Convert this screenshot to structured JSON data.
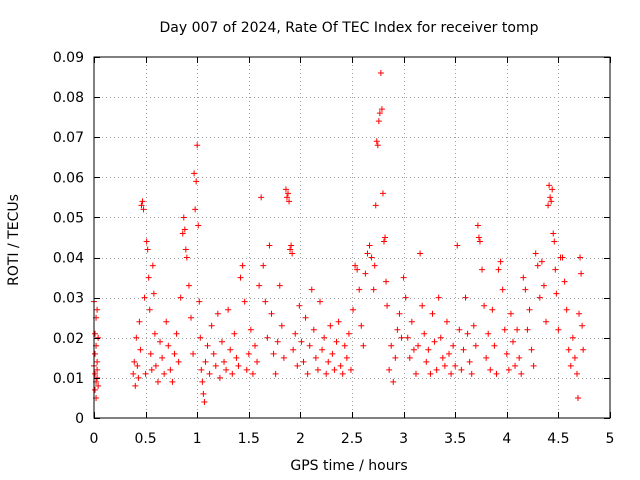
{
  "chart_data": {
    "type": "scatter",
    "title": "Day 007 of 2024, Rate Of TEC Index for receiver tomp",
    "xlabel": "GPS time / hours",
    "ylabel": "ROTI / TECUs",
    "xlim": [
      0,
      5
    ],
    "ylim": [
      0,
      0.09
    ],
    "xticks": [
      0,
      0.5,
      1,
      1.5,
      2,
      2.5,
      3,
      3.5,
      4,
      4.5,
      5
    ],
    "xtick_labels": [
      "0",
      "0.5",
      "1",
      "1.5",
      "2",
      "2.5",
      "3",
      "3.5",
      "4",
      "4.5",
      "5"
    ],
    "yticks": [
      0,
      0.01,
      0.02,
      0.03,
      0.04,
      0.05,
      0.06,
      0.07,
      0.08,
      0.09
    ],
    "ytick_labels": [
      "0",
      "0.01",
      "0.02",
      "0.03",
      "0.04",
      "0.05",
      "0.06",
      "0.07",
      "0.08",
      "0.09"
    ],
    "grid": true,
    "marker": "+",
    "color": "#ff0000",
    "series": [
      {
        "name": "ROTI",
        "points": [
          [
            0.0,
            0.029
          ],
          [
            0.0,
            0.013
          ],
          [
            0.01,
            0.011
          ],
          [
            0.01,
            0.007
          ],
          [
            0.01,
            0.021
          ],
          [
            0.02,
            0.025
          ],
          [
            0.02,
            0.009
          ],
          [
            0.02,
            0.005
          ],
          [
            0.03,
            0.014
          ],
          [
            0.03,
            0.012
          ],
          [
            0.03,
            0.027
          ],
          [
            0.04,
            0.02
          ],
          [
            0.04,
            0.008
          ],
          [
            0.01,
            0.016
          ],
          [
            0.02,
            0.018
          ],
          [
            0.03,
            0.01
          ],
          [
            0.38,
            0.011
          ],
          [
            0.39,
            0.014
          ],
          [
            0.4,
            0.008
          ],
          [
            0.41,
            0.02
          ],
          [
            0.42,
            0.013
          ],
          [
            0.43,
            0.01
          ],
          [
            0.44,
            0.024
          ],
          [
            0.45,
            0.017
          ],
          [
            0.46,
            0.053
          ],
          [
            0.47,
            0.054
          ],
          [
            0.48,
            0.052
          ],
          [
            0.49,
            0.03
          ],
          [
            0.5,
            0.011
          ],
          [
            0.51,
            0.044
          ],
          [
            0.52,
            0.042
          ],
          [
            0.53,
            0.035
          ],
          [
            0.54,
            0.027
          ],
          [
            0.55,
            0.016
          ],
          [
            0.56,
            0.012
          ],
          [
            0.57,
            0.038
          ],
          [
            0.58,
            0.031
          ],
          [
            0.59,
            0.021
          ],
          [
            0.6,
            0.013
          ],
          [
            0.62,
            0.009
          ],
          [
            0.64,
            0.019
          ],
          [
            0.66,
            0.015
          ],
          [
            0.68,
            0.011
          ],
          [
            0.7,
            0.024
          ],
          [
            0.72,
            0.018
          ],
          [
            0.74,
            0.012
          ],
          [
            0.76,
            0.009
          ],
          [
            0.78,
            0.016
          ],
          [
            0.8,
            0.021
          ],
          [
            0.82,
            0.014
          ],
          [
            0.84,
            0.03
          ],
          [
            0.86,
            0.046
          ],
          [
            0.87,
            0.05
          ],
          [
            0.88,
            0.047
          ],
          [
            0.89,
            0.042
          ],
          [
            0.9,
            0.04
          ],
          [
            0.92,
            0.033
          ],
          [
            0.94,
            0.025
          ],
          [
            0.96,
            0.016
          ],
          [
            0.97,
            0.061
          ],
          [
            0.98,
            0.052
          ],
          [
            0.99,
            0.059
          ],
          [
            1.0,
            0.068
          ],
          [
            1.01,
            0.048
          ],
          [
            1.02,
            0.029
          ],
          [
            1.03,
            0.02
          ],
          [
            1.04,
            0.012
          ],
          [
            1.05,
            0.009
          ],
          [
            1.06,
            0.006
          ],
          [
            1.07,
            0.004
          ],
          [
            1.08,
            0.014
          ],
          [
            1.1,
            0.018
          ],
          [
            1.12,
            0.011
          ],
          [
            1.14,
            0.023
          ],
          [
            1.16,
            0.016
          ],
          [
            1.18,
            0.013
          ],
          [
            1.2,
            0.026
          ],
          [
            1.22,
            0.01
          ],
          [
            1.24,
            0.019
          ],
          [
            1.26,
            0.014
          ],
          [
            1.28,
            0.012
          ],
          [
            1.3,
            0.027
          ],
          [
            1.32,
            0.017
          ],
          [
            1.34,
            0.011
          ],
          [
            1.36,
            0.021
          ],
          [
            1.38,
            0.015
          ],
          [
            1.4,
            0.013
          ],
          [
            1.42,
            0.035
          ],
          [
            1.44,
            0.038
          ],
          [
            1.46,
            0.029
          ],
          [
            1.48,
            0.012
          ],
          [
            1.5,
            0.016
          ],
          [
            1.52,
            0.022
          ],
          [
            1.54,
            0.011
          ],
          [
            1.56,
            0.018
          ],
          [
            1.58,
            0.014
          ],
          [
            1.6,
            0.033
          ],
          [
            1.62,
            0.055
          ],
          [
            1.64,
            0.038
          ],
          [
            1.66,
            0.029
          ],
          [
            1.68,
            0.02
          ],
          [
            1.7,
            0.043
          ],
          [
            1.72,
            0.026
          ],
          [
            1.74,
            0.016
          ],
          [
            1.76,
            0.011
          ],
          [
            1.78,
            0.019
          ],
          [
            1.8,
            0.033
          ],
          [
            1.82,
            0.023
          ],
          [
            1.84,
            0.015
          ],
          [
            1.86,
            0.057
          ],
          [
            1.87,
            0.055
          ],
          [
            1.88,
            0.056
          ],
          [
            1.89,
            0.054
          ],
          [
            1.9,
            0.042
          ],
          [
            1.91,
            0.043
          ],
          [
            1.92,
            0.041
          ],
          [
            1.93,
            0.017
          ],
          [
            1.95,
            0.021
          ],
          [
            1.97,
            0.013
          ],
          [
            1.99,
            0.028
          ],
          [
            2.01,
            0.019
          ],
          [
            2.03,
            0.014
          ],
          [
            2.05,
            0.025
          ],
          [
            2.07,
            0.011
          ],
          [
            2.09,
            0.018
          ],
          [
            2.11,
            0.032
          ],
          [
            2.13,
            0.022
          ],
          [
            2.15,
            0.015
          ],
          [
            2.17,
            0.012
          ],
          [
            2.19,
            0.029
          ],
          [
            2.21,
            0.017
          ],
          [
            2.23,
            0.02
          ],
          [
            2.25,
            0.011
          ],
          [
            2.27,
            0.014
          ],
          [
            2.29,
            0.023
          ],
          [
            2.31,
            0.016
          ],
          [
            2.33,
            0.012
          ],
          [
            2.35,
            0.019
          ],
          [
            2.37,
            0.024
          ],
          [
            2.39,
            0.013
          ],
          [
            2.41,
            0.011
          ],
          [
            2.43,
            0.018
          ],
          [
            2.45,
            0.015
          ],
          [
            2.47,
            0.021
          ],
          [
            2.49,
            0.012
          ],
          [
            2.51,
            0.027
          ],
          [
            2.53,
            0.038
          ],
          [
            2.55,
            0.037
          ],
          [
            2.57,
            0.032
          ],
          [
            2.59,
            0.023
          ],
          [
            2.61,
            0.018
          ],
          [
            2.63,
            0.036
          ],
          [
            2.65,
            0.041
          ],
          [
            2.67,
            0.043
          ],
          [
            2.69,
            0.04
          ],
          [
            2.71,
            0.032
          ],
          [
            2.72,
            0.038
          ],
          [
            2.73,
            0.053
          ],
          [
            2.74,
            0.069
          ],
          [
            2.75,
            0.068
          ],
          [
            2.76,
            0.074
          ],
          [
            2.77,
            0.076
          ],
          [
            2.78,
            0.086
          ],
          [
            2.79,
            0.077
          ],
          [
            2.8,
            0.056
          ],
          [
            2.81,
            0.044
          ],
          [
            2.82,
            0.045
          ],
          [
            2.83,
            0.034
          ],
          [
            2.84,
            0.028
          ],
          [
            2.86,
            0.012
          ],
          [
            2.88,
            0.018
          ],
          [
            2.9,
            0.009
          ],
          [
            2.92,
            0.015
          ],
          [
            2.94,
            0.022
          ],
          [
            2.96,
            0.026
          ],
          [
            2.98,
            0.02
          ],
          [
            3.0,
            0.035
          ],
          [
            3.02,
            0.03
          ],
          [
            3.04,
            0.02
          ],
          [
            3.06,
            0.015
          ],
          [
            3.08,
            0.024
          ],
          [
            3.1,
            0.017
          ],
          [
            3.12,
            0.011
          ],
          [
            3.14,
            0.018
          ],
          [
            3.16,
            0.041
          ],
          [
            3.18,
            0.028
          ],
          [
            3.2,
            0.021
          ],
          [
            3.22,
            0.014
          ],
          [
            3.24,
            0.017
          ],
          [
            3.26,
            0.011
          ],
          [
            3.28,
            0.026
          ],
          [
            3.3,
            0.019
          ],
          [
            3.32,
            0.012
          ],
          [
            3.34,
            0.03
          ],
          [
            3.36,
            0.02
          ],
          [
            3.38,
            0.015
          ],
          [
            3.4,
            0.013
          ],
          [
            3.42,
            0.024
          ],
          [
            3.44,
            0.016
          ],
          [
            3.46,
            0.011
          ],
          [
            3.48,
            0.018
          ],
          [
            3.5,
            0.013
          ],
          [
            3.52,
            0.043
          ],
          [
            3.54,
            0.022
          ],
          [
            3.56,
            0.012
          ],
          [
            3.58,
            0.017
          ],
          [
            3.6,
            0.03
          ],
          [
            3.62,
            0.021
          ],
          [
            3.64,
            0.014
          ],
          [
            3.66,
            0.011
          ],
          [
            3.68,
            0.023
          ],
          [
            3.7,
            0.018
          ],
          [
            3.72,
            0.048
          ],
          [
            3.73,
            0.045
          ],
          [
            3.74,
            0.044
          ],
          [
            3.76,
            0.037
          ],
          [
            3.78,
            0.028
          ],
          [
            3.8,
            0.015
          ],
          [
            3.82,
            0.021
          ],
          [
            3.84,
            0.012
          ],
          [
            3.86,
            0.027
          ],
          [
            3.88,
            0.018
          ],
          [
            3.9,
            0.011
          ],
          [
            3.92,
            0.037
          ],
          [
            3.94,
            0.039
          ],
          [
            3.96,
            0.032
          ],
          [
            3.98,
            0.022
          ],
          [
            4.0,
            0.016
          ],
          [
            4.02,
            0.012
          ],
          [
            4.04,
            0.026
          ],
          [
            4.06,
            0.019
          ],
          [
            4.08,
            0.013
          ],
          [
            4.1,
            0.022
          ],
          [
            4.12,
            0.015
          ],
          [
            4.14,
            0.011
          ],
          [
            4.16,
            0.035
          ],
          [
            4.18,
            0.032
          ],
          [
            4.2,
            0.022
          ],
          [
            4.22,
            0.027
          ],
          [
            4.24,
            0.017
          ],
          [
            4.26,
            0.013
          ],
          [
            4.28,
            0.041
          ],
          [
            4.3,
            0.038
          ],
          [
            4.32,
            0.03
          ],
          [
            4.34,
            0.039
          ],
          [
            4.36,
            0.033
          ],
          [
            4.38,
            0.024
          ],
          [
            4.4,
            0.053
          ],
          [
            4.41,
            0.058
          ],
          [
            4.42,
            0.055
          ],
          [
            4.43,
            0.054
          ],
          [
            4.44,
            0.057
          ],
          [
            4.45,
            0.046
          ],
          [
            4.46,
            0.044
          ],
          [
            4.47,
            0.037
          ],
          [
            4.48,
            0.031
          ],
          [
            4.5,
            0.022
          ],
          [
            4.52,
            0.04
          ],
          [
            4.54,
            0.04
          ],
          [
            4.56,
            0.034
          ],
          [
            4.58,
            0.027
          ],
          [
            4.6,
            0.017
          ],
          [
            4.62,
            0.013
          ],
          [
            4.64,
            0.02
          ],
          [
            4.66,
            0.015
          ],
          [
            4.68,
            0.011
          ],
          [
            4.69,
            0.005
          ],
          [
            4.7,
            0.026
          ],
          [
            4.71,
            0.04
          ],
          [
            4.72,
            0.036
          ],
          [
            4.73,
            0.023
          ],
          [
            4.74,
            0.017
          ]
        ]
      }
    ]
  }
}
